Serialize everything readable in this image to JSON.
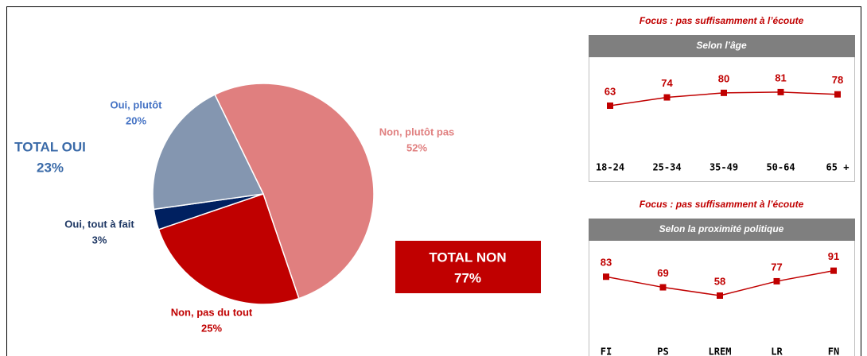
{
  "chart_data": [
    {
      "type": "pie",
      "categories": [
        "Non, plutôt pas",
        "Non, pas du tout",
        "Oui, tout à fait",
        "Oui, plutôt"
      ],
      "values": [
        52,
        25,
        3,
        20
      ],
      "value_labels": [
        "52%",
        "25%",
        "3%",
        "20%"
      ],
      "colors": [
        "#e07f7f",
        "#c00000",
        "#002060",
        "#8496b0"
      ],
      "label_colors": [
        "#e07f7f",
        "#c00000",
        "#1f3864",
        "#4472c4"
      ],
      "annotations": [
        {
          "label": "TOTAL OUI",
          "value": 23,
          "value_label": "23%",
          "color": "#3a6aa8"
        },
        {
          "label": "TOTAL NON",
          "value": 77,
          "value_label": "77%",
          "color": "#c00000"
        }
      ]
    },
    {
      "type": "line",
      "title": "Focus : pas suffisamment à l’écoute",
      "subtitle": "Selon l’âge",
      "categories": [
        "18-24",
        "25-34",
        "35-49",
        "50-64",
        "65 +"
      ],
      "values": [
        63,
        74,
        80,
        81,
        78
      ],
      "color": "#c00000"
    },
    {
      "type": "line",
      "title": "Focus : pas suffisamment à l’écoute",
      "subtitle": "Selon la proximité politique",
      "categories": [
        "FI",
        "PS",
        "LREM",
        "LR",
        "FN"
      ],
      "values": [
        83,
        69,
        58,
        77,
        91
      ],
      "color": "#c00000"
    }
  ]
}
